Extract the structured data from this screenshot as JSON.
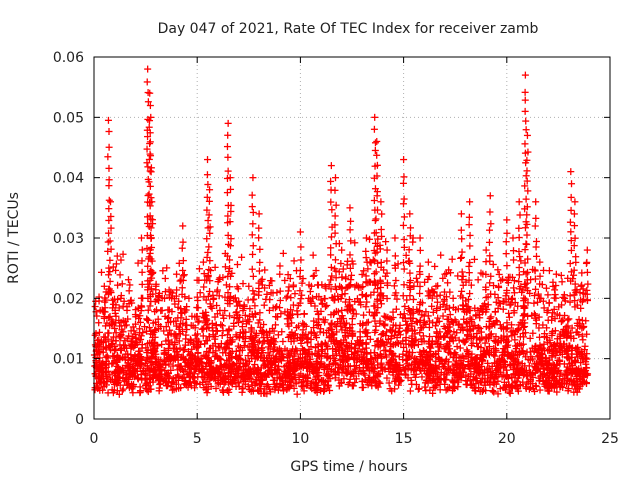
{
  "chart_data": {
    "type": "scatter",
    "title": "Day 047 of 2021, Rate Of TEC Index for receiver zamb",
    "xlabel": "GPS time / hours",
    "ylabel": "ROTI / TECUs",
    "xlim": [
      0,
      25
    ],
    "ylim": [
      0,
      0.06
    ],
    "x_ticks": [
      0,
      5,
      10,
      15,
      20,
      25
    ],
    "x_tick_labels": [
      "0",
      "5",
      "10",
      "15",
      "20",
      "25"
    ],
    "y_ticks": [
      0,
      0.01,
      0.02,
      0.03,
      0.04,
      0.05,
      0.06
    ],
    "y_tick_labels": [
      "0",
      "0.01",
      "0.02",
      "0.03",
      "0.04",
      "0.05",
      "0.06"
    ],
    "grid": true,
    "marker": "+",
    "series": [
      {
        "name": "ROTI",
        "color": "#ff0000",
        "x": [
          0.1,
          0.3,
          0.5,
          0.7,
          0.8,
          1.0,
          1.3,
          1.6,
          2.0,
          2.3,
          2.6,
          2.7,
          2.75,
          2.8,
          3.0,
          3.3,
          3.6,
          4.0,
          4.3,
          4.6,
          5.0,
          5.3,
          5.5,
          5.6,
          5.8,
          6.1,
          6.5,
          6.6,
          7.0,
          7.5,
          7.7,
          8.0,
          8.5,
          9.0,
          9.5,
          10.0,
          10.4,
          10.8,
          11.2,
          11.5,
          11.7,
          12.0,
          12.4,
          12.8,
          13.2,
          13.6,
          13.7,
          13.9,
          14.2,
          14.6,
          15.0,
          15.3,
          15.5,
          15.8,
          16.2,
          16.6,
          17.0,
          17.4,
          17.8,
          18.2,
          18.6,
          19.0,
          19.2,
          19.6,
          20.0,
          20.3,
          20.6,
          20.9,
          21.0,
          21.4,
          21.6,
          22.0,
          22.4,
          22.8,
          23.1,
          23.3,
          23.6,
          23.9
        ],
        "y": [
          0.012,
          0.018,
          0.022,
          0.0495,
          0.036,
          0.015,
          0.02,
          0.018,
          0.014,
          0.03,
          0.058,
          0.054,
          0.05,
          0.036,
          0.022,
          0.018,
          0.016,
          0.024,
          0.032,
          0.02,
          0.017,
          0.026,
          0.043,
          0.038,
          0.02,
          0.018,
          0.049,
          0.04,
          0.016,
          0.022,
          0.04,
          0.034,
          0.018,
          0.024,
          0.014,
          0.031,
          0.02,
          0.016,
          0.022,
          0.042,
          0.04,
          0.028,
          0.035,
          0.022,
          0.03,
          0.05,
          0.046,
          0.036,
          0.028,
          0.025,
          0.043,
          0.034,
          0.022,
          0.03,
          0.026,
          0.018,
          0.024,
          0.02,
          0.034,
          0.036,
          0.018,
          0.028,
          0.037,
          0.022,
          0.033,
          0.03,
          0.036,
          0.057,
          0.047,
          0.036,
          0.026,
          0.018,
          0.024,
          0.02,
          0.041,
          0.036,
          0.022,
          0.028
        ]
      }
    ]
  }
}
